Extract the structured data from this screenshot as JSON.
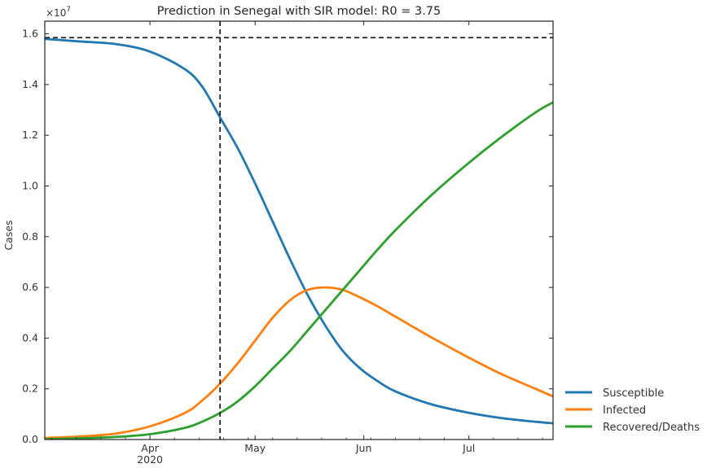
{
  "chart_data": {
    "type": "line",
    "title": "Prediction in Senegal with SIR model: R0 = 3.75",
    "xlabel": "",
    "ylabel": "Cases",
    "y_multiplier_label": "×10^7",
    "y_multiplier_base": "×10",
    "y_multiplier_exp": "7",
    "ylim": [
      0,
      16500000
    ],
    "y_ticks": [
      0,
      2000000,
      4000000,
      6000000,
      8000000,
      10000000,
      12000000,
      14000000,
      16000000
    ],
    "y_tick_labels": [
      "0.0",
      "0.2",
      "0.4",
      "0.6",
      "0.8",
      "1.0",
      "1.2",
      "1.4",
      "1.6"
    ],
    "xlim": [
      "2020-03-02",
      "2020-07-25"
    ],
    "x_ticks": [
      "2020-04-01",
      "2020-05-01",
      "2020-06-01",
      "2020-07-01"
    ],
    "x_tick_labels": [
      "Apr",
      "May",
      "Jun",
      "Jul"
    ],
    "x_year_label": "2020",
    "grid": false,
    "legend_position": "outside-bottom-right",
    "reference_lines": {
      "vertical_date": "2020-04-21",
      "horizontal_value": 15850000
    },
    "series": [
      {
        "name": "Susceptible",
        "color": "#1f77b4",
        "x": [
          "2020-03-02",
          "2020-03-12",
          "2020-03-22",
          "2020-04-01",
          "2020-04-11",
          "2020-04-16",
          "2020-04-21",
          "2020-04-26",
          "2020-05-01",
          "2020-05-06",
          "2020-05-11",
          "2020-05-16",
          "2020-05-21",
          "2020-05-26",
          "2020-05-31",
          "2020-06-05",
          "2020-06-10",
          "2020-06-20",
          "2020-06-30",
          "2020-07-10",
          "2020-07-20",
          "2020-07-25"
        ],
        "y": [
          15800000,
          15700000,
          15600000,
          15300000,
          14600000,
          13900000,
          12700000,
          11500000,
          10100000,
          8600000,
          7100000,
          5700000,
          4500000,
          3500000,
          2800000,
          2300000,
          1900000,
          1400000,
          1080000,
          850000,
          700000,
          640000
        ]
      },
      {
        "name": "Infected",
        "color": "#ff7f0e",
        "x": [
          "2020-03-02",
          "2020-03-12",
          "2020-03-22",
          "2020-04-01",
          "2020-04-11",
          "2020-04-16",
          "2020-04-21",
          "2020-04-26",
          "2020-05-01",
          "2020-05-06",
          "2020-05-11",
          "2020-05-16",
          "2020-05-21",
          "2020-05-26",
          "2020-05-31",
          "2020-06-05",
          "2020-06-10",
          "2020-06-20",
          "2020-06-30",
          "2020-07-10",
          "2020-07-20",
          "2020-07-25"
        ],
        "y": [
          60000,
          120000,
          230000,
          520000,
          1050000,
          1550000,
          2200000,
          3000000,
          3900000,
          4800000,
          5500000,
          5900000,
          6000000,
          5900000,
          5600000,
          5250000,
          4850000,
          4050000,
          3300000,
          2600000,
          2000000,
          1700000
        ]
      },
      {
        "name": "Recovered/Deaths",
        "color": "#2ca02c",
        "x": [
          "2020-03-02",
          "2020-03-12",
          "2020-03-22",
          "2020-04-01",
          "2020-04-11",
          "2020-04-16",
          "2020-04-21",
          "2020-04-26",
          "2020-05-01",
          "2020-05-06",
          "2020-05-11",
          "2020-05-16",
          "2020-05-21",
          "2020-05-26",
          "2020-05-31",
          "2020-06-05",
          "2020-06-10",
          "2020-06-20",
          "2020-06-30",
          "2020-07-10",
          "2020-07-20",
          "2020-07-25"
        ],
        "y": [
          10000,
          50000,
          100000,
          210000,
          460000,
          710000,
          1050000,
          1500000,
          2100000,
          2800000,
          3500000,
          4300000,
          5100000,
          5900000,
          6700000,
          7500000,
          8250000,
          9600000,
          10800000,
          11900000,
          12900000,
          13300000
        ]
      }
    ]
  }
}
